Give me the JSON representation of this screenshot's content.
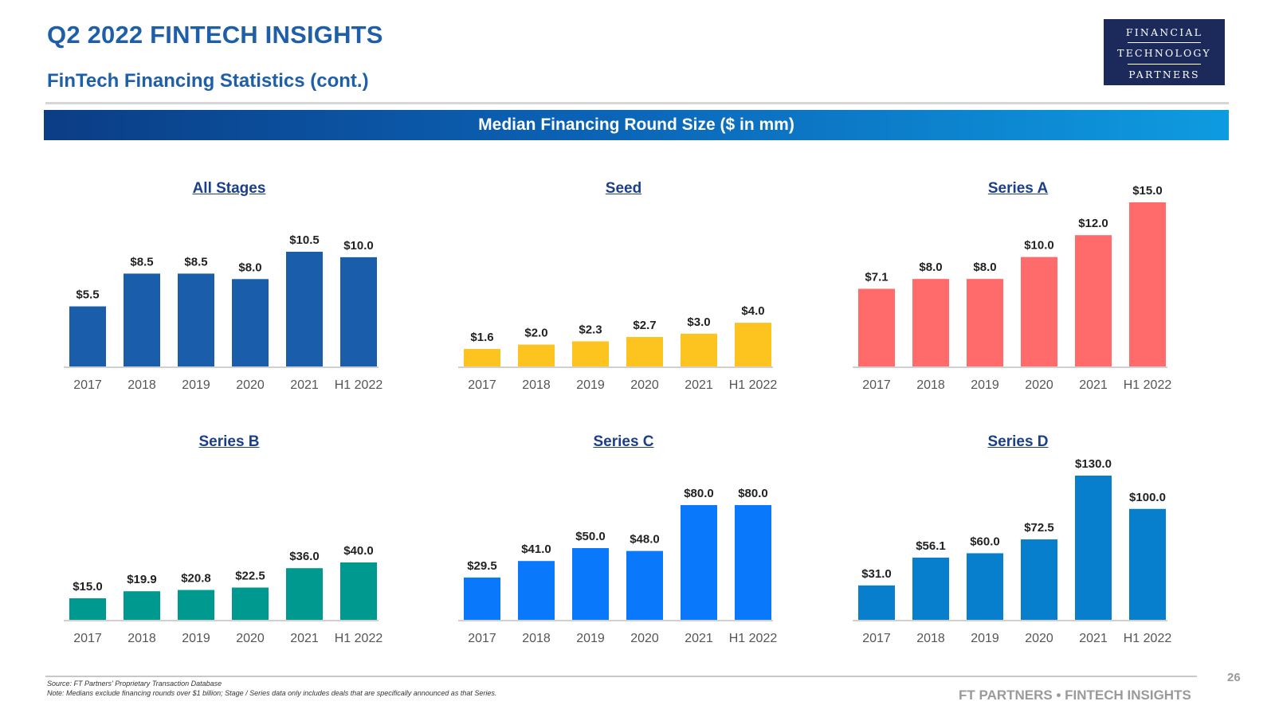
{
  "header": {
    "title": "Q2 2022 FINTECH INSIGHTS",
    "subtitle": "FinTech Financing Statistics (cont.)"
  },
  "logo": {
    "line1": "FINANCIAL",
    "line2": "TECHNOLOGY",
    "line3": "PARTNERS"
  },
  "banner": {
    "title": "Median Financing Round Size ($ in mm)"
  },
  "footer": {
    "source": "Source: FT Partners' Proprietary Transaction Database",
    "note": "Note: Medians exclude financing rounds over $1 billion; Stage / Series data only includes deals that are specifically announced as that Series.",
    "page_number": "26",
    "brand": "FT PARTNERS • FINTECH INSIGHTS"
  },
  "chart_data": [
    {
      "type": "bar",
      "title": "All Stages",
      "categories": [
        "2017",
        "2018",
        "2019",
        "2020",
        "2021",
        "H1 2022"
      ],
      "values": [
        5.5,
        8.5,
        8.5,
        8.0,
        10.5,
        10.0
      ],
      "labels": [
        "$5.5",
        "$8.5",
        "$8.5",
        "$8.0",
        "$10.5",
        "$10.0"
      ],
      "color": "#1a5eab",
      "grid": false,
      "ylim": [
        0,
        11
      ]
    },
    {
      "type": "bar",
      "title": "Seed",
      "categories": [
        "2017",
        "2018",
        "2019",
        "2020",
        "2021",
        "H1 2022"
      ],
      "values": [
        1.6,
        2.0,
        2.3,
        2.7,
        3.0,
        4.0
      ],
      "labels": [
        "$1.6",
        "$2.0",
        "$2.3",
        "$2.7",
        "$3.0",
        "$4.0"
      ],
      "color": "#fdc31f",
      "grid": false,
      "ylim": [
        0,
        11
      ]
    },
    {
      "type": "bar",
      "title": "Series A",
      "categories": [
        "2017",
        "2018",
        "2019",
        "2020",
        "2021",
        "H1 2022"
      ],
      "values": [
        7.1,
        8.0,
        8.0,
        10.0,
        12.0,
        15.0
      ],
      "labels": [
        "$7.1",
        "$8.0",
        "$8.0",
        "$10.0",
        "$12.0",
        "$15.0"
      ],
      "color": "#ff6b6b",
      "grid": false,
      "ylim": [
        0,
        15
      ]
    },
    {
      "type": "bar",
      "title": "Series B",
      "categories": [
        "2017",
        "2018",
        "2019",
        "2020",
        "2021",
        "H1 2022"
      ],
      "values": [
        15.0,
        19.9,
        20.8,
        22.5,
        36.0,
        40.0
      ],
      "labels": [
        "$15.0",
        "$19.9",
        "$20.8",
        "$22.5",
        "$36.0",
        "$40.0"
      ],
      "color": "#009990",
      "grid": false,
      "ylim": [
        0,
        80
      ]
    },
    {
      "type": "bar",
      "title": "Series C",
      "categories": [
        "2017",
        "2018",
        "2019",
        "2020",
        "2021",
        "H1 2022"
      ],
      "values": [
        29.5,
        41.0,
        50.0,
        48.0,
        80.0,
        80.0
      ],
      "labels": [
        "$29.5",
        "$41.0",
        "$50.0",
        "$48.0",
        "$80.0",
        "$80.0"
      ],
      "color": "#0a78fa",
      "grid": false,
      "ylim": [
        0,
        80
      ]
    },
    {
      "type": "bar",
      "title": "Series D",
      "categories": [
        "2017",
        "2018",
        "2019",
        "2020",
        "2021",
        "H1 2022"
      ],
      "values": [
        31.0,
        56.1,
        60.0,
        72.5,
        130.0,
        100.0
      ],
      "labels": [
        "$31.0",
        "$56.1",
        "$60.0",
        "$72.5",
        "$130.0",
        "$100.0"
      ],
      "color": "#077fcc",
      "grid": false,
      "ylim": [
        0,
        130
      ]
    }
  ]
}
